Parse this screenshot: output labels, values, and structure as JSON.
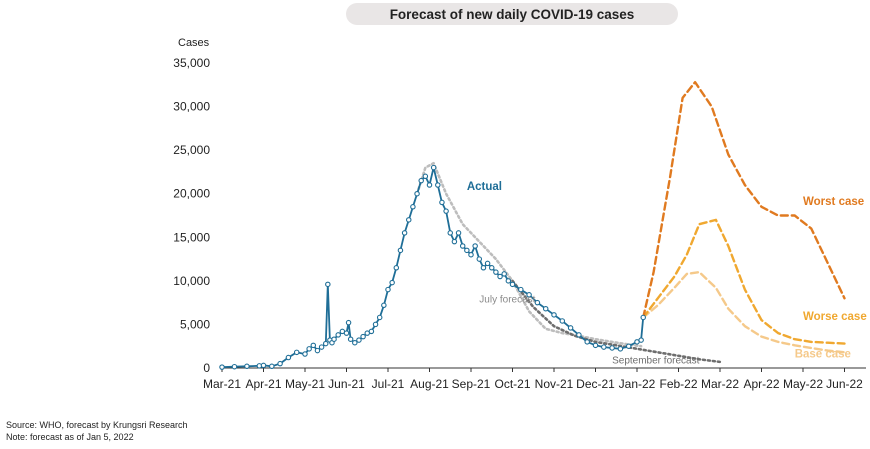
{
  "chart_data": {
    "type": "line",
    "title": "Forecast of new daily COVID-19 cases",
    "ylabel": "Cases",
    "ylim": [
      0,
      35000
    ],
    "y_ticks": [
      "0",
      "5,000",
      "10,000",
      "15,000",
      "20,000",
      "25,000",
      "30,000",
      "35,000"
    ],
    "y_tick_values": [
      0,
      5000,
      10000,
      15000,
      20000,
      25000,
      30000,
      35000
    ],
    "x_ticks": [
      "Mar-21",
      "Apr-21",
      "May-21",
      "Jun-21",
      "Jul-21",
      "Aug-21",
      "Sep-21",
      "Oct-21",
      "Nov-21",
      "Dec-21",
      "Jan-22",
      "Feb-22",
      "Mar-22",
      "Apr-22",
      "May-22",
      "Jun-22"
    ],
    "series": [
      {
        "name": "Actual",
        "color": "#1f6e97",
        "style": "solid-with-markers",
        "x": [
          0,
          0.3,
          0.6,
          0.9,
          1.0,
          1.2,
          1.4,
          1.6,
          1.8,
          2.0,
          2.1,
          2.2,
          2.3,
          2.4,
          2.5,
          2.55,
          2.6,
          2.65,
          2.7,
          2.8,
          2.9,
          3.0,
          3.05,
          3.1,
          3.2,
          3.3,
          3.4,
          3.5,
          3.6,
          3.7,
          3.8,
          3.9,
          4.0,
          4.1,
          4.2,
          4.3,
          4.4,
          4.5,
          4.6,
          4.7,
          4.8,
          4.9,
          5.0,
          5.1,
          5.2,
          5.3,
          5.4,
          5.5,
          5.6,
          5.7,
          5.8,
          5.9,
          6.0,
          6.1,
          6.2,
          6.3,
          6.4,
          6.5,
          6.6,
          6.7,
          6.8,
          6.9,
          7.0,
          7.2,
          7.4,
          7.6,
          7.8,
          8.0,
          8.2,
          8.4,
          8.6,
          8.8,
          9.0,
          9.2,
          9.4,
          9.6,
          9.8,
          10.0,
          10.1,
          10.15
        ],
        "values": [
          100,
          150,
          200,
          250,
          300,
          200,
          500,
          1200,
          1800,
          1600,
          2200,
          2600,
          2000,
          2400,
          2800,
          9600,
          3200,
          2900,
          3300,
          3800,
          4200,
          4000,
          5200,
          3300,
          2900,
          3200,
          3600,
          4000,
          4200,
          5000,
          5800,
          7200,
          9000,
          9800,
          11500,
          13500,
          15500,
          17000,
          18500,
          20000,
          21500,
          22000,
          21000,
          23000,
          21000,
          19000,
          18000,
          15500,
          14500,
          15500,
          14000,
          13500,
          13000,
          14000,
          12500,
          11500,
          12000,
          11500,
          11000,
          10500,
          10800,
          10000,
          9600,
          9000,
          8400,
          7500,
          6800,
          6100,
          5400,
          4600,
          3800,
          3000,
          2600,
          2400,
          2300,
          2200,
          2500,
          3000,
          3200,
          5800
        ]
      },
      {
        "name": "",
        "color": "#e07a20",
        "style": "dashed",
        "x": [
          10.15,
          10.4,
          10.8,
          11.1,
          11.4,
          11.8,
          12.2,
          12.6,
          13.0,
          13.4,
          13.8,
          14.2,
          14.6,
          15.0
        ],
        "values": [
          5800,
          11000,
          22000,
          31000,
          32800,
          30000,
          24500,
          21000,
          18500,
          17500,
          17500,
          16000,
          12000,
          8000
        ]
      },
      {
        "name": "",
        "color": "#f0a830",
        "style": "dashed",
        "x": [
          10.15,
          10.5,
          10.9,
          11.2,
          11.5,
          11.9,
          12.2,
          12.6,
          13.0,
          13.4,
          13.8,
          14.2,
          14.6,
          15.0
        ],
        "values": [
          5800,
          8000,
          10500,
          13000,
          16500,
          17000,
          14000,
          9000,
          5500,
          4000,
          3300,
          3000,
          2900,
          2800
        ]
      },
      {
        "name": "",
        "color": "#f5c98a",
        "style": "dashed",
        "x": [
          10.15,
          10.5,
          10.9,
          11.2,
          11.5,
          11.9,
          12.2,
          12.6,
          13.0,
          13.4,
          13.8,
          14.2,
          14.6,
          15.0
        ],
        "values": [
          5800,
          7200,
          9200,
          10800,
          11000,
          9200,
          6800,
          4800,
          3600,
          3000,
          2600,
          2300,
          2000,
          1800
        ]
      },
      {
        "name": "",
        "color": "#bdbdbd",
        "style": "dotted",
        "x": [
          4.7,
          4.9,
          5.1,
          5.4,
          5.8,
          6.2,
          6.6,
          7.0,
          7.4,
          7.8,
          8.2,
          8.6,
          9.0,
          9.4,
          9.8,
          10.1
        ],
        "values": [
          20000,
          23000,
          23500,
          20000,
          16500,
          14500,
          12500,
          10000,
          6500,
          4500,
          4000,
          3700,
          3300,
          3000,
          2700,
          2500
        ]
      },
      {
        "name": "",
        "color": "#6e6e6e",
        "style": "dotted",
        "x": [
          7.0,
          7.5,
          8.0,
          8.5,
          9.0,
          9.5,
          10.0,
          10.5,
          11.0,
          11.5,
          12.0
        ],
        "values": [
          10000,
          7000,
          4800,
          3700,
          3000,
          2600,
          2200,
          1800,
          1400,
          1000,
          700
        ]
      }
    ],
    "annotations": [
      {
        "text": "Actual",
        "color": "#1f6e97",
        "x": 5.9,
        "y": 20400
      },
      {
        "text": "July forecast",
        "color": "#8a8a8a",
        "x": 6.2,
        "y": 7500
      },
      {
        "text": "September forecast",
        "color": "#6e6e6e",
        "x": 9.4,
        "y": 500
      },
      {
        "text": "Worst case",
        "color": "#e07a20",
        "x": 14.0,
        "y": 18700
      },
      {
        "text": "Worse case",
        "color": "#f0a830",
        "x": 14.0,
        "y": 5500
      },
      {
        "text": "Base case",
        "color": "#f5c98a",
        "x": 13.8,
        "y": 1200
      }
    ],
    "grid": false,
    "legend": "none"
  },
  "notes": {
    "source": "Source: WHO, forecast by Krungsri Research",
    "note": "Note: forecast as of Jan 5, 2022"
  }
}
